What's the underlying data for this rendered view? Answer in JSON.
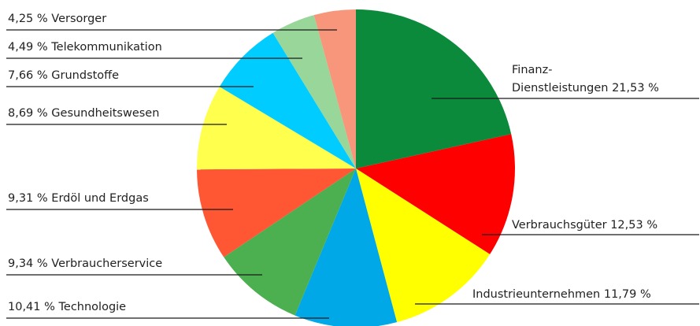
{
  "chart_data": {
    "type": "pie",
    "start_angle_deg": 0,
    "direction": "clockwise",
    "slices": [
      {
        "label": "Finanz-Dienstleistungen 21,53 %",
        "label_lines": [
          "Finanz-",
          "Dienstleistungen 21,53 %"
        ],
        "value": 21.53,
        "color": "#0a8a3a"
      },
      {
        "label": "Verbrauchsgüter 12,53 %",
        "label_lines": [
          "Verbrauchsgüter 12,53 %"
        ],
        "value": 12.53,
        "color": "#ff0000"
      },
      {
        "label": "Industrieunternehmen 11,79 %",
        "label_lines": [
          "Industrieunternehmen 11,79 %"
        ],
        "value": 11.79,
        "color": "#ffff00"
      },
      {
        "label": "10,41 % Technologie",
        "label_lines": [
          "10,41 % Technologie"
        ],
        "value": 10.41,
        "color": "#00a8e8"
      },
      {
        "label": "9,34 % Verbraucherservice",
        "label_lines": [
          "9,34 % Verbraucherservice"
        ],
        "value": 9.34,
        "color": "#4caf50"
      },
      {
        "label": "9,31 % Erdöl und Erdgas",
        "label_lines": [
          "9,31 % Erdöl und Erdgas"
        ],
        "value": 9.31,
        "color": "#ff5733"
      },
      {
        "label": "8,69 % Gesundheitswesen",
        "label_lines": [
          "8,69 % Gesundheitswesen"
        ],
        "value": 8.69,
        "color": "#ffff4d"
      },
      {
        "label": "7,66 % Grundstoffe",
        "label_lines": [
          "7,66 % Grundstoffe"
        ],
        "value": 7.66,
        "color": "#00ccff"
      },
      {
        "label": "4,49 % Telekommunikation",
        "label_lines": [
          "4,49 % Telekommunikation"
        ],
        "value": 4.49,
        "color": "#99d699"
      },
      {
        "label": "4,25 % Versorger",
        "label_lines": [
          "4,25 % Versorger"
        ],
        "value": 4.25,
        "color": "#f7967a"
      }
    ]
  }
}
